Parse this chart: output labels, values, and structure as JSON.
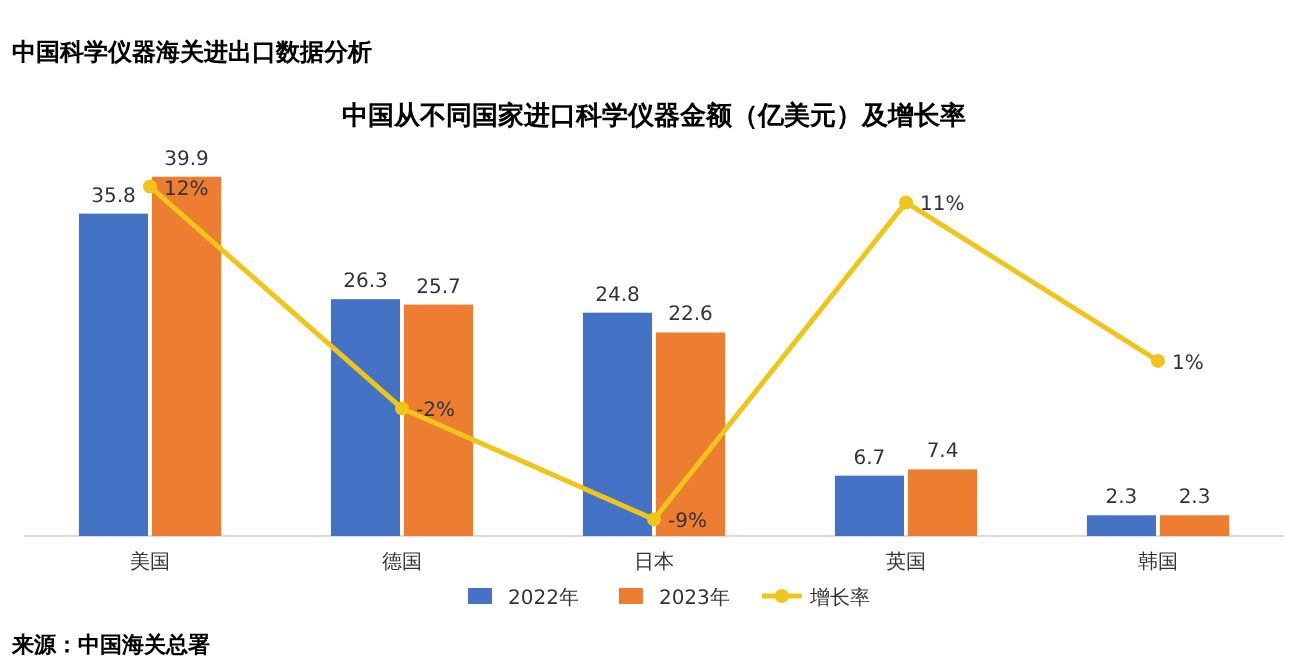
{
  "chart_data": {
    "type": "bar",
    "title": "中国从不同国家进口科学仪器金额（亿美元）及增长率",
    "subtitle": "中国科学仪器海关进出口数据分析",
    "categories": [
      "美国",
      "德国",
      "日本",
      "英国",
      "韩国"
    ],
    "series": [
      {
        "name": "2022年",
        "color": "#4472c4",
        "values": [
          35.8,
          26.3,
          24.8,
          6.7,
          2.3
        ]
      },
      {
        "name": "2023年",
        "color": "#ed7d31",
        "values": [
          39.9,
          25.7,
          22.6,
          7.4,
          2.3
        ]
      },
      {
        "name": "增长率",
        "type": "line",
        "axis": "y2",
        "color": "#f0c419",
        "marker": "circle",
        "values": [
          12,
          -2,
          -9,
          11,
          1
        ],
        "value_labels": [
          "12%",
          "-2%",
          "-9%",
          "11%",
          "1%"
        ]
      }
    ],
    "data_labels": true,
    "tick_labels": "x",
    "legend": "bottom",
    "annotations": [
      "来源：中国海关总署"
    ]
  }
}
